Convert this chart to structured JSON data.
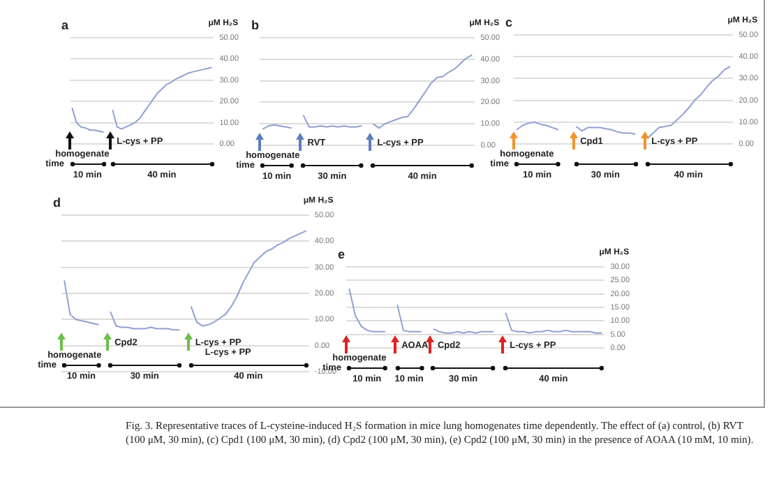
{
  "chart_data": [
    {
      "type": "line",
      "title": "a",
      "ylabel": "μM H₂S",
      "categories": [
        null,
        null,
        null,
        null,
        null,
        null,
        null,
        null,
        null,
        null,
        null,
        null,
        null,
        null,
        null,
        null,
        null,
        null,
        null,
        null,
        null,
        null,
        null,
        null,
        null,
        null,
        null,
        null,
        null,
        null,
        null,
        null
      ],
      "series": [
        {
          "color": "#8fa0d2",
          "values": [
            17,
            10,
            8,
            7.5,
            6.5,
            6.5,
            6,
            5.5,
            null,
            null,
            null,
            null,
            null,
            null,
            null,
            null,
            null,
            null,
            null,
            null,
            null,
            null,
            null,
            null,
            null,
            null,
            null,
            null,
            null,
            null,
            null,
            null
          ]
        },
        {
          "color": "#8fa0d2",
          "values": [
            null,
            null,
            null,
            null,
            null,
            null,
            null,
            null,
            null,
            16,
            8,
            7,
            8,
            9,
            10,
            12,
            15,
            18,
            21,
            24,
            26,
            28,
            29,
            30.5,
            31.5,
            32.5,
            33.5,
            34,
            34.5,
            35,
            35.5,
            36
          ]
        }
      ],
      "ylim": [
        0,
        50
      ],
      "yticks": [
        {
          "value": 0,
          "label": "0.00"
        },
        {
          "value": 10,
          "label": "10.00"
        },
        {
          "value": 20,
          "label": "20.00"
        },
        {
          "value": 30,
          "label": "30.00"
        },
        {
          "value": 40,
          "label": "40.00"
        },
        {
          "value": 50,
          "label": "50.00"
        }
      ],
      "grid": "y",
      "marker": "none",
      "annotations": [
        "homogenate",
        "L-cys + PP",
        "time",
        "10 min",
        "40 min"
      ]
    },
    {
      "type": "line",
      "title": "b",
      "ylabel": "μM H₂S",
      "categories": [
        null,
        null,
        null,
        null,
        null,
        null,
        null,
        null,
        null,
        null,
        null,
        null,
        null,
        null,
        null,
        null,
        null,
        null,
        null,
        null,
        null,
        null,
        null,
        null,
        null,
        null,
        null,
        null,
        null,
        null,
        null,
        null,
        null,
        null,
        null,
        null,
        null
      ],
      "series": [
        {
          "color": "#8fa0d2",
          "values": [
            7.5,
            9,
            9.5,
            9,
            8.5,
            8,
            null,
            null,
            null,
            null,
            null,
            null,
            null,
            null,
            null,
            null,
            null,
            null,
            null,
            null,
            null,
            null,
            null,
            null,
            null,
            null,
            null,
            null,
            null,
            null,
            null,
            null,
            null,
            null,
            null,
            null,
            null
          ]
        },
        {
          "color": "#8fa0d2",
          "values": [
            null,
            null,
            null,
            null,
            null,
            null,
            null,
            14,
            8.5,
            8.5,
            9,
            8.5,
            9,
            8.5,
            9,
            8.5,
            8.5,
            9,
            null,
            null,
            null,
            null,
            null,
            null,
            null,
            null,
            null,
            null,
            null,
            null,
            null,
            null,
            null,
            null,
            null,
            null,
            null
          ]
        },
        {
          "color": "#8fa0d2",
          "values": [
            null,
            null,
            null,
            null,
            null,
            null,
            null,
            null,
            null,
            null,
            null,
            null,
            null,
            null,
            null,
            null,
            null,
            null,
            null,
            10,
            8,
            10,
            11,
            12,
            13,
            13.5,
            17,
            21,
            25,
            29,
            31.5,
            32,
            34,
            35.5,
            38,
            40.5,
            42
          ]
        }
      ],
      "ylim": [
        0,
        50
      ],
      "yticks": [
        {
          "value": 0,
          "label": "0.00"
        },
        {
          "value": 10,
          "label": "10.00"
        },
        {
          "value": 20,
          "label": "20.00"
        },
        {
          "value": 30,
          "label": "30.00"
        },
        {
          "value": 40,
          "label": "40.00"
        },
        {
          "value": 50,
          "label": "50.00"
        }
      ],
      "grid": "y",
      "marker": "none",
      "annotations": [
        "homogenate",
        "RVT",
        "L-cys + PP",
        "time",
        "10 min",
        "30 min",
        "40 min"
      ]
    },
    {
      "type": "line",
      "title": "c",
      "ylabel": "μM H₂S",
      "categories": [
        null,
        null,
        null,
        null,
        null,
        null,
        null,
        null,
        null,
        null,
        null,
        null,
        null,
        null,
        null,
        null,
        null,
        null,
        null,
        null,
        null,
        null,
        null,
        null,
        null,
        null,
        null,
        null,
        null,
        null,
        null,
        null,
        null,
        null,
        null,
        null,
        null
      ],
      "series": [
        {
          "color": "#8fa0d2",
          "values": [
            6.5,
            8.5,
            9.5,
            10,
            9,
            8.5,
            7.5,
            6.5,
            null,
            null,
            null,
            null,
            null,
            null,
            null,
            null,
            null,
            null,
            null,
            null,
            null,
            null,
            null,
            null,
            null,
            null,
            null,
            null,
            null,
            null,
            null,
            null,
            null,
            null,
            null,
            null,
            null
          ]
        },
        {
          "color": "#8fa0d2",
          "values": [
            null,
            null,
            null,
            null,
            null,
            null,
            null,
            null,
            null,
            null,
            8,
            6,
            7.5,
            7.5,
            7.5,
            7,
            6.5,
            5.5,
            5,
            5,
            4.5,
            null,
            null,
            null,
            null,
            null,
            null,
            null,
            null,
            null,
            null,
            null,
            null,
            null,
            null,
            null,
            null
          ]
        },
        {
          "color": "#8fa0d2",
          "values": [
            null,
            null,
            null,
            null,
            null,
            null,
            null,
            null,
            null,
            null,
            null,
            null,
            null,
            null,
            null,
            null,
            null,
            null,
            null,
            null,
            null,
            null,
            2.5,
            5,
            7.5,
            8,
            8.5,
            11,
            13.5,
            16.5,
            20,
            22.5,
            26,
            29,
            31,
            34,
            35.5
          ]
        }
      ],
      "ylim": [
        0,
        50
      ],
      "yticks": [
        {
          "value": 0,
          "label": "0.00"
        },
        {
          "value": 10,
          "label": "10.00"
        },
        {
          "value": 20,
          "label": "20.00"
        },
        {
          "value": 30,
          "label": "30.00"
        },
        {
          "value": 40,
          "label": "40.00"
        },
        {
          "value": 50,
          "label": "50.00"
        }
      ],
      "grid": "y",
      "marker": "none",
      "annotations": [
        "homogenate",
        "Cpd1",
        "L-cys + PP",
        "time",
        "10 min",
        "30 min",
        "40 min"
      ]
    },
    {
      "type": "line",
      "title": "d",
      "ylabel": "μM H₂S",
      "categories": [
        null,
        null,
        null,
        null,
        null,
        null,
        null,
        null,
        null,
        null,
        null,
        null,
        null,
        null,
        null,
        null,
        null,
        null,
        null,
        null,
        null,
        null,
        null,
        null,
        null,
        null,
        null,
        null,
        null,
        null,
        null,
        null,
        null,
        null,
        null,
        null,
        null,
        null,
        null,
        null,
        null,
        null,
        null
      ],
      "series": [
        {
          "color": "#8fa0d2",
          "values": [
            25,
            12,
            10,
            9.5,
            9,
            8.5,
            8,
            null,
            null,
            null,
            null,
            null,
            null,
            null,
            null,
            null,
            null,
            null,
            null,
            null,
            null,
            null,
            null,
            null,
            null,
            null,
            null,
            null,
            null,
            null,
            null,
            null,
            null,
            null,
            null,
            null,
            null,
            null,
            null,
            null,
            null,
            null,
            null
          ]
        },
        {
          "color": "#8fa0d2",
          "values": [
            null,
            null,
            null,
            null,
            null,
            null,
            null,
            null,
            13,
            7.5,
            7,
            7,
            6.5,
            6.5,
            6.5,
            7,
            6.5,
            6.5,
            6.5,
            6,
            6,
            null,
            null,
            null,
            null,
            null,
            null,
            null,
            null,
            null,
            null,
            null,
            null,
            null,
            null,
            null,
            null,
            null,
            null,
            null,
            null,
            null,
            null
          ]
        },
        {
          "color": "#8fa0d2",
          "values": [
            null,
            null,
            null,
            null,
            null,
            null,
            null,
            null,
            null,
            null,
            null,
            null,
            null,
            null,
            null,
            null,
            null,
            null,
            null,
            null,
            null,
            null,
            15,
            9,
            7.5,
            8,
            9,
            10.5,
            12,
            15,
            19,
            24,
            28,
            32,
            34,
            36,
            37,
            38.5,
            39.5,
            41,
            42,
            43,
            44
          ]
        }
      ],
      "ylim": [
        -10,
        50
      ],
      "yticks": [
        {
          "value": -10,
          "label": "-10.00"
        },
        {
          "value": 0,
          "label": "0.00"
        },
        {
          "value": 10,
          "label": "10.00"
        },
        {
          "value": 20,
          "label": "20.00"
        },
        {
          "value": 30,
          "label": "30.00"
        },
        {
          "value": 40,
          "label": "40.00"
        },
        {
          "value": 50,
          "label": "50.00"
        }
      ],
      "grid": "y",
      "marker": "none",
      "annotations": [
        "homogenate",
        "Cpd2",
        "L-cys + PP",
        "time",
        "10 min",
        "30 min",
        "40 min",
        "L-cys + PP"
      ]
    },
    {
      "type": "line",
      "title": "e",
      "ylabel": "μM H₂S",
      "categories": [
        null,
        null,
        null,
        null,
        null,
        null,
        null,
        null,
        null,
        null,
        null,
        null,
        null,
        null,
        null,
        null,
        null,
        null,
        null,
        null,
        null,
        null,
        null,
        null,
        null,
        null,
        null,
        null,
        null,
        null,
        null,
        null,
        null,
        null,
        null,
        null,
        null,
        null,
        null,
        null,
        null,
        null,
        null
      ],
      "series": [
        {
          "color": "#8fa0d2",
          "values": [
            22,
            12,
            8,
            6.5,
            6,
            6,
            6,
            null,
            null,
            null,
            null,
            null,
            null,
            null,
            null,
            null,
            null,
            null,
            null,
            null,
            null,
            null,
            null,
            null,
            null,
            null,
            null,
            null,
            null,
            null,
            null,
            null,
            null,
            null,
            null,
            null,
            null,
            null,
            null,
            null,
            null,
            null,
            null
          ]
        },
        {
          "color": "#8fa0d2",
          "values": [
            null,
            null,
            null,
            null,
            null,
            null,
            null,
            null,
            16,
            6.5,
            6,
            6,
            6,
            null,
            null,
            null,
            null,
            null,
            null,
            null,
            null,
            null,
            null,
            null,
            null,
            null,
            null,
            null,
            null,
            null,
            null,
            null,
            null,
            null,
            null,
            null,
            null,
            null,
            null,
            null,
            null,
            null,
            null
          ]
        },
        {
          "color": "#8fa0d2",
          "values": [
            null,
            null,
            null,
            null,
            null,
            null,
            null,
            null,
            null,
            null,
            null,
            null,
            null,
            null,
            7,
            6,
            5.5,
            5.5,
            6,
            5.5,
            6,
            5.5,
            6,
            6,
            6,
            null,
            null,
            null,
            null,
            null,
            null,
            null,
            null,
            null,
            null,
            null,
            null,
            null,
            null,
            null,
            null,
            null,
            null
          ]
        },
        {
          "color": "#8fa0d2",
          "values": [
            null,
            null,
            null,
            null,
            null,
            null,
            null,
            null,
            null,
            null,
            null,
            null,
            null,
            null,
            null,
            null,
            null,
            null,
            null,
            null,
            null,
            null,
            null,
            null,
            null,
            null,
            13,
            6.5,
            6,
            6,
            5.5,
            6,
            6,
            6.5,
            6,
            6,
            6.5,
            6,
            6,
            6,
            6,
            5.5,
            5.5
          ]
        }
      ],
      "ylim": [
        0,
        30
      ],
      "yticks": [
        {
          "value": 0,
          "label": "0.00"
        },
        {
          "value": 5,
          "label": "5.00"
        },
        {
          "value": 10,
          "label": "10.00"
        },
        {
          "value": 15,
          "label": "15.00"
        },
        {
          "value": 20,
          "label": "20.00"
        },
        {
          "value": 25,
          "label": "25.00"
        },
        {
          "value": 30,
          "label": "30.00"
        }
      ],
      "grid": "y",
      "marker": "none",
      "annotations": [
        "homogenate",
        "AOAA",
        "Cpd2",
        "L-cys + PP",
        "time",
        "10 min",
        "10 min",
        "30 min",
        "40 min"
      ]
    },
    {
      "type": "other",
      "annotations": [
        "Fig. 3. Representative traces of L-cysteine-induced H₂S formation in mice lung homogenates time dependently. The effect of (a) control, (b) RVT (100 μM, 30 min), (c) Cpd1 (100 μM, 30 min), (d) Cpd2 (100 μM, 30 min), (e) Cpd2 (100 μM, 30 min) in the presence of AOAA (10 mM, 10 min)."
      ]
    }
  ]
}
